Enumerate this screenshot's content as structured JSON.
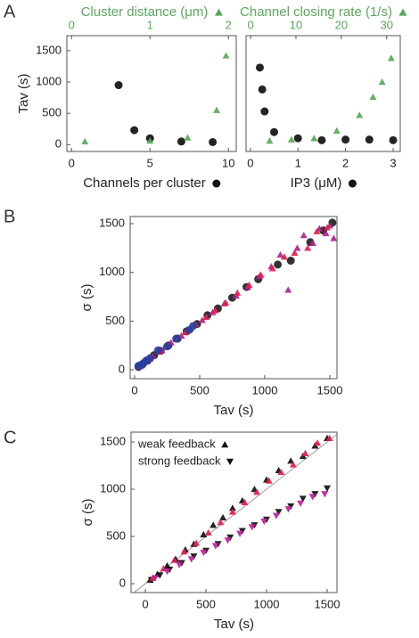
{
  "panel_labels": [
    "A",
    "B",
    "C"
  ],
  "chart_data": [
    {
      "type": "scatter",
      "xlabel": "Channels per cluster",
      "ylabel": "Tav (s)",
      "x2label": "Cluster distance (μm)",
      "xlim": [
        -0.3,
        10.5
      ],
      "xticks": [
        0,
        5,
        10
      ],
      "x2lim": [
        -0.06,
        2.1
      ],
      "x2ticks": [
        0,
        1,
        2
      ],
      "ylim": [
        -110,
        1740
      ],
      "yticks": [
        0,
        500,
        1000,
        1500
      ],
      "axis_label_markers": true,
      "series": [
        {
          "color": "#111111",
          "marker": "circle",
          "x": [
            3,
            4,
            5,
            7,
            9
          ],
          "values": [
            950,
            230,
            100,
            50,
            40
          ]
        },
        {
          "color": "#5aa85a",
          "marker": "triangle-up",
          "axis": "x2",
          "x": [
            0.17,
            1.0,
            1.48,
            1.85,
            1.97
          ],
          "values": [
            50,
            60,
            110,
            550,
            1420
          ]
        }
      ]
    },
    {
      "type": "scatter",
      "xlabel": "IP3 (μM)",
      "x2label": "Channel closing rate (1/s)",
      "xlim": [
        -0.09,
        3.15
      ],
      "xticks": [
        0,
        1,
        2,
        3
      ],
      "x2lim": [
        -1,
        33
      ],
      "x2ticks": [
        0,
        10,
        20,
        30
      ],
      "ylim": [
        -110,
        1740
      ],
      "axis_label_markers": true,
      "series": [
        {
          "color": "#111111",
          "marker": "circle",
          "x": [
            0.2,
            0.25,
            0.3,
            0.5,
            1,
            1.5,
            2,
            2.5,
            3
          ],
          "values": [
            1230,
            880,
            530,
            200,
            100,
            70,
            80,
            80,
            70
          ]
        },
        {
          "color": "#5aa85a",
          "marker": "triangle-up",
          "axis": "x2",
          "x": [
            4.2,
            9,
            14,
            19,
            24,
            27,
            29,
            31
          ],
          "values": [
            60,
            80,
            100,
            220,
            470,
            760,
            1000,
            1380
          ]
        }
      ]
    },
    {
      "type": "scatter",
      "xlabel": "Tav (s)",
      "ylabel": "σ (s)",
      "xlim": [
        -34,
        1555
      ],
      "xticks": [
        0,
        500,
        1000,
        1500
      ],
      "ylim": [
        -91,
        1573
      ],
      "yticks": [
        0,
        500,
        1000,
        1500
      ],
      "series": [
        {
          "color": "#222222",
          "marker": "circle",
          "x": [
            30,
            60,
            100,
            150,
            200,
            260,
            330,
            400,
            480,
            560,
            640,
            750,
            860,
            950,
            1100,
            1200,
            1350,
            1450,
            1520
          ],
          "values": [
            30,
            55,
            95,
            150,
            195,
            250,
            320,
            395,
            470,
            560,
            630,
            740,
            850,
            930,
            1080,
            1120,
            1310,
            1430,
            1510
          ]
        },
        {
          "color": "#b0228f",
          "marker": "triangle-up",
          "x": [
            40,
            90,
            140,
            210,
            280,
            360,
            430,
            520,
            600,
            690,
            780,
            870,
            960,
            1050,
            1120,
            1180,
            1250,
            1300,
            1370,
            1420,
            1470,
            1500,
            1530
          ],
          "values": [
            35,
            85,
            140,
            200,
            280,
            350,
            420,
            510,
            590,
            680,
            760,
            850,
            960,
            1060,
            1180,
            820,
            1250,
            1380,
            1300,
            1450,
            1400,
            1480,
            1350
          ]
        },
        {
          "color": "#e0204a",
          "marker": "triangle-up",
          "x": [
            50,
            120,
            190,
            250,
            320,
            390,
            470,
            550,
            620,
            700,
            790,
            880,
            970,
            1060,
            1150,
            1230,
            1330,
            1400,
            1480
          ],
          "values": [
            45,
            115,
            185,
            245,
            315,
            385,
            465,
            540,
            610,
            690,
            790,
            870,
            975,
            1040,
            1160,
            1200,
            1250,
            1420,
            1460
          ]
        },
        {
          "color": "#2a3fa0",
          "marker": "circle",
          "x": [
            30,
            50,
            70,
            90,
            120,
            180,
            250,
            320,
            420,
            450
          ],
          "values": [
            40,
            50,
            70,
            95,
            120,
            200,
            240,
            320,
            410,
            450
          ]
        }
      ]
    },
    {
      "type": "scatter",
      "xlabel": "Tav (s)",
      "ylabel": "σ (s)",
      "identity_line": true,
      "legend": "upper left",
      "xlim": [
        -118,
        1581
      ],
      "xticks": [
        0,
        500,
        1000,
        1500
      ],
      "ylim": [
        -94,
        1604
      ],
      "yticks": [
        0,
        500,
        1000,
        1500
      ],
      "series": [
        {
          "name": "weak feedback",
          "color": "#111111",
          "marker": "triangle-up",
          "x": [
            40,
            100,
            180,
            250,
            330,
            400,
            480,
            560,
            640,
            720,
            800,
            900,
            1000,
            1100,
            1200,
            1300,
            1400,
            1500
          ],
          "values": [
            40,
            100,
            190,
            260,
            360,
            420,
            520,
            620,
            700,
            800,
            880,
            1000,
            1100,
            1200,
            1300,
            1350,
            1460,
            1540
          ]
        },
        {
          "name": "strong feedback",
          "color": "#111111",
          "marker": "triangle-down",
          "x": [
            50,
            120,
            200,
            300,
            400,
            500,
            600,
            700,
            800,
            900,
            1000,
            1100,
            1200,
            1300,
            1400,
            1500
          ],
          "values": [
            40,
            90,
            150,
            220,
            290,
            350,
            420,
            490,
            560,
            620,
            680,
            760,
            820,
            900,
            950,
            1010
          ]
        },
        {
          "color": "#e0204a",
          "marker": "triangle-up",
          "x": [
            60,
            150,
            240,
            320,
            420,
            520,
            620,
            720,
            820,
            920,
            1020,
            1120,
            1220,
            1320,
            1420,
            1520
          ],
          "values": [
            60,
            160,
            250,
            340,
            430,
            540,
            650,
            760,
            860,
            970,
            1090,
            1180,
            1260,
            1380,
            1490,
            1540
          ]
        },
        {
          "color": "#c0209a",
          "marker": "triangle-down",
          "x": [
            80,
            180,
            280,
            380,
            480,
            580,
            680,
            780,
            880,
            980,
            1080,
            1180,
            1280,
            1380,
            1480
          ],
          "values": [
            60,
            130,
            200,
            260,
            330,
            400,
            460,
            530,
            600,
            660,
            720,
            790,
            850,
            920,
            950
          ]
        }
      ]
    }
  ]
}
